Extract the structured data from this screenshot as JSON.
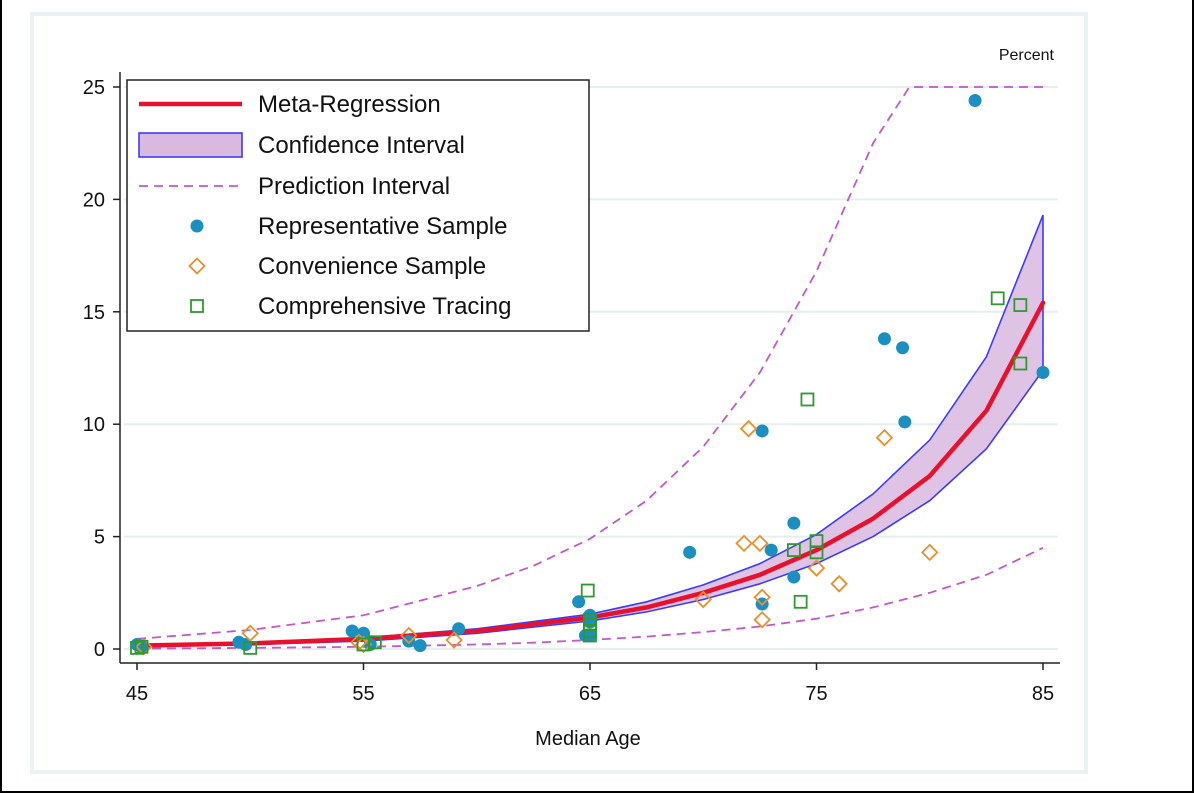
{
  "colors": {
    "background": "#ffffff",
    "plot_region": "#eaf2f3",
    "grid": "#e6eef0",
    "meta_regression": "#e8112d",
    "ci_fill": "#d9b9e0",
    "ci_stroke": "#3b3bff",
    "prediction": "#c05ac8",
    "representative": "#1a8fc0",
    "convenience": "#e8902a",
    "comprehensive": "#2e9a2e"
  },
  "chart_data": {
    "type": "scatter",
    "title": "",
    "xlabel": "Median Age",
    "ylabel": "Percent",
    "xlim": [
      45,
      85
    ],
    "ylim": [
      0,
      25
    ],
    "xticks": [
      45,
      55,
      65,
      75,
      85
    ],
    "yticks": [
      0,
      5,
      10,
      15,
      20,
      25
    ],
    "grid": true,
    "legend_position": "top-left",
    "legend": [
      "Meta-Regression",
      "Confidence Interval",
      "Prediction Interval",
      "Representative Sample",
      "Convenience Sample",
      "Comprehensive Tracing"
    ],
    "meta_regression": {
      "x": [
        45,
        50,
        55,
        60,
        65,
        67.5,
        70,
        72.5,
        75,
        77.5,
        80,
        82.5,
        85
      ],
      "y": [
        0.15,
        0.25,
        0.45,
        0.8,
        1.4,
        1.85,
        2.5,
        3.3,
        4.4,
        5.8,
        7.7,
        10.6,
        15.4
      ]
    },
    "confidence_interval": {
      "x": [
        45,
        50,
        55,
        60,
        65,
        67.5,
        70,
        72.5,
        75,
        77.5,
        80,
        82.5,
        85
      ],
      "lower": [
        0.1,
        0.2,
        0.35,
        0.7,
        1.25,
        1.65,
        2.2,
        2.9,
        3.8,
        5.0,
        6.6,
        8.9,
        12.4
      ],
      "upper": [
        0.2,
        0.3,
        0.5,
        0.9,
        1.55,
        2.1,
        2.85,
        3.8,
        5.1,
        6.9,
        9.3,
        13.0,
        19.3
      ]
    },
    "prediction_interval": {
      "x": [
        45,
        50,
        55,
        60,
        62.5,
        65,
        67.5,
        70,
        72.5,
        75,
        77.5,
        80,
        82.5,
        85
      ],
      "lower": [
        0.02,
        0.05,
        0.1,
        0.2,
        0.28,
        0.4,
        0.55,
        0.75,
        1.0,
        1.35,
        1.85,
        2.5,
        3.3,
        4.5
      ],
      "upper": [
        0.45,
        0.85,
        1.5,
        2.8,
        3.7,
        4.9,
        6.6,
        9.0,
        12.3,
        16.8,
        22.5,
        25,
        25,
        25
      ],
      "cap_x": 79.1
    },
    "series": [
      {
        "name": "Representative Sample",
        "marker": "circle",
        "x": [
          45,
          45.2,
          49.5,
          49.8,
          54.5,
          55,
          55.3,
          57,
          57.5,
          59.2,
          64.5,
          64.8,
          65,
          65,
          65,
          69.4,
          72.6,
          72.6,
          73,
          74,
          74,
          78,
          78.8,
          78.9,
          82,
          85
        ],
        "y": [
          0.2,
          0.1,
          0.3,
          0.2,
          0.8,
          0.7,
          0.2,
          0.35,
          0.15,
          0.9,
          2.1,
          0.6,
          1.5,
          1.2,
          0.6,
          4.3,
          9.7,
          2.0,
          4.4,
          5.6,
          3.2,
          13.8,
          13.4,
          10.1,
          24.4,
          12.3
        ]
      },
      {
        "name": "Convenience Sample",
        "marker": "diamond",
        "x": [
          45.3,
          50,
          54.8,
          55,
          57,
          59,
          70,
          71.8,
          72,
          72.5,
          72.6,
          72.6,
          75,
          76,
          78,
          80
        ],
        "y": [
          0.1,
          0.7,
          0.3,
          0.2,
          0.6,
          0.4,
          2.2,
          4.7,
          9.8,
          4.7,
          2.3,
          1.3,
          3.6,
          2.9,
          9.4,
          4.3
        ]
      },
      {
        "name": "Comprehensive Tracing",
        "marker": "square",
        "x": [
          45,
          45.2,
          50,
          55,
          55.5,
          64.9,
          65,
          65,
          65,
          65,
          74,
          74.3,
          74.6,
          75,
          75,
          83,
          84,
          84
        ],
        "y": [
          0.05,
          0.1,
          0.05,
          0.2,
          0.3,
          2.6,
          1.3,
          1.1,
          0.8,
          0.6,
          4.4,
          2.1,
          11.1,
          4.8,
          4.3,
          15.6,
          15.3,
          12.7
        ]
      }
    ]
  }
}
